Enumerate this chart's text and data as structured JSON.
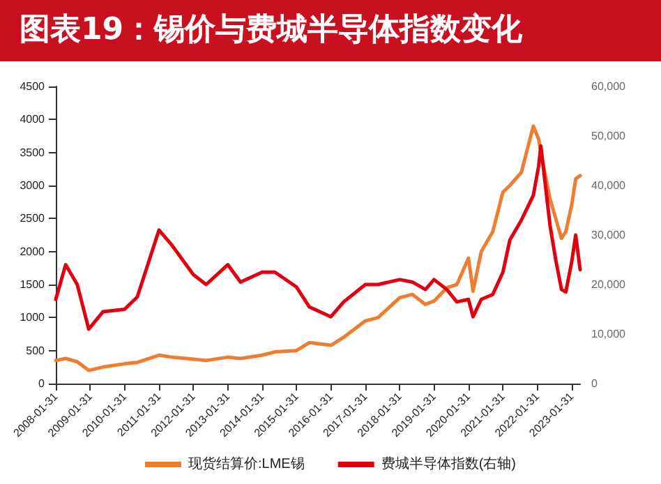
{
  "chart_data": {
    "type": "line",
    "title": "图表19：锡价与费城半导体指数变化",
    "x": [
      "2008-01-31",
      "2008-05-15",
      "2008-09-15",
      "2009-01-15",
      "2009-06-15",
      "2010-01-31",
      "2010-06-15",
      "2011-01-31",
      "2011-06-15",
      "2012-01-31",
      "2012-06-15",
      "2013-01-31",
      "2013-06-15",
      "2014-01-31",
      "2014-06-15",
      "2015-01-31",
      "2015-06-15",
      "2016-01-31",
      "2016-06-15",
      "2017-01-31",
      "2017-06-15",
      "2018-01-31",
      "2018-06-15",
      "2018-10-31",
      "2019-01-31",
      "2019-06-15",
      "2019-09-30",
      "2020-01-31",
      "2020-03-20",
      "2020-06-15",
      "2020-10-15",
      "2021-01-31",
      "2021-04-15",
      "2021-08-15",
      "2021-12-20",
      "2022-02-15",
      "2022-03-10",
      "2022-06-15",
      "2022-08-15",
      "2022-10-15",
      "2022-11-30",
      "2023-01-31",
      "2023-03-15",
      "2023-05-01"
    ],
    "series": [
      {
        "name": "现货结算价:LME锡",
        "color": "#ed7d31",
        "values": [
          350,
          380,
          330,
          200,
          250,
          300,
          320,
          430,
          400,
          370,
          350,
          400,
          380,
          430,
          480,
          500,
          620,
          580,
          700,
          950,
          1000,
          1300,
          1350,
          1200,
          1250,
          1450,
          1500,
          1900,
          1400,
          2000,
          2300,
          2900,
          3000,
          3200,
          3900,
          3700,
          3500,
          2800,
          2500,
          2200,
          2300,
          2700,
          3100,
          3150
        ]
      },
      {
        "name": "费城半导体指数(右轴)",
        "color": "#e00010",
        "axis": "y2",
        "values": [
          17000,
          24000,
          20000,
          11000,
          14500,
          15000,
          17500,
          31000,
          28000,
          22000,
          20000,
          24000,
          20500,
          22500,
          22500,
          19500,
          15500,
          13500,
          16500,
          20000,
          20000,
          21000,
          20500,
          19000,
          21000,
          19000,
          16500,
          17000,
          13500,
          17000,
          18000,
          22500,
          29000,
          33000,
          38000,
          44000,
          48000,
          32000,
          25000,
          19000,
          18500,
          24500,
          30000,
          23000
        ]
      }
    ],
    "xlim": [
      "2008-01-31",
      "2023-05-01"
    ],
    "xticks": [
      "2008-01-31",
      "2009-01-31",
      "2010-01-31",
      "2011-01-31",
      "2012-01-31",
      "2013-01-31",
      "2014-01-31",
      "2015-01-31",
      "2016-01-31",
      "2017-01-31",
      "2018-01-31",
      "2019-01-31",
      "2020-01-31",
      "2021-01-31",
      "2022-01-31",
      "2023-01-31"
    ],
    "ylim": [
      0,
      4500
    ],
    "yticks": [
      0,
      500,
      1000,
      1500,
      2000,
      2500,
      3000,
      3500,
      4000,
      4500
    ],
    "y2lim": [
      0,
      60000
    ],
    "y2ticks": [
      {
        "value": 0,
        "label": "0"
      },
      {
        "value": 10000,
        "label": "10,000"
      },
      {
        "value": 20000,
        "label": "20,000"
      },
      {
        "value": 30000,
        "label": "30,000"
      },
      {
        "value": 40000,
        "label": "40,000"
      },
      {
        "value": 50000,
        "label": "50,000"
      },
      {
        "value": 60000,
        "label": "60,000"
      }
    ],
    "grid": false,
    "legend": "bottom",
    "marker": "none",
    "line_style": "solid"
  }
}
